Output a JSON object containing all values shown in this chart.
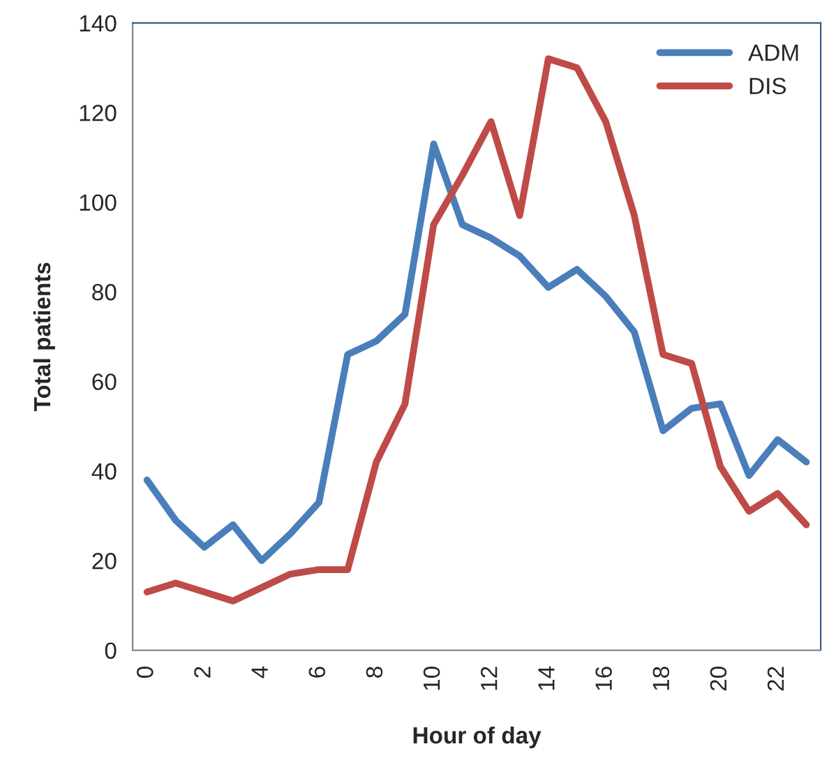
{
  "chart_data": {
    "type": "line",
    "xlabel": "Hour of day",
    "ylabel": "Total patients",
    "categories": [
      "0",
      null,
      "2",
      null,
      "4",
      null,
      "6",
      null,
      "8",
      null,
      "10",
      null,
      "12",
      null,
      "14",
      null,
      "16",
      null,
      "18",
      null,
      "20",
      null,
      "22",
      null
    ],
    "series": [
      {
        "name": "ADM",
        "color": "#4a7ebb",
        "values": [
          38,
          29,
          23,
          28,
          20,
          26,
          33,
          66,
          69,
          75,
          113,
          95,
          92,
          88,
          81,
          85,
          79,
          71,
          49,
          54,
          55,
          39,
          47,
          42
        ]
      },
      {
        "name": "DIS",
        "color": "#be4b48",
        "values": [
          13,
          15,
          13,
          11,
          14,
          17,
          18,
          18,
          42,
          55,
          95,
          106,
          118,
          97,
          132,
          130,
          118,
          97,
          66,
          64,
          41,
          31,
          35,
          28
        ]
      }
    ],
    "ylim": [
      0,
      140
    ],
    "yticks": [
      0,
      20,
      40,
      60,
      80,
      100,
      120,
      140
    ],
    "grid": false,
    "legend": "top right",
    "marker": "none",
    "line_style": "solid"
  }
}
